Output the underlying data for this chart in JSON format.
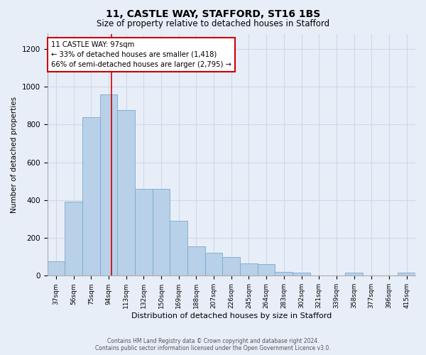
{
  "title1": "11, CASTLE WAY, STAFFORD, ST16 1BS",
  "title2": "Size of property relative to detached houses in Stafford",
  "xlabel": "Distribution of detached houses by size in Stafford",
  "ylabel": "Number of detached properties",
  "categories": [
    "37sqm",
    "56sqm",
    "75sqm",
    "94sqm",
    "113sqm",
    "132sqm",
    "150sqm",
    "169sqm",
    "188sqm",
    "207sqm",
    "226sqm",
    "245sqm",
    "264sqm",
    "283sqm",
    "302sqm",
    "321sqm",
    "339sqm",
    "358sqm",
    "377sqm",
    "396sqm",
    "415sqm"
  ],
  "values": [
    75,
    390,
    840,
    960,
    875,
    460,
    460,
    290,
    155,
    120,
    100,
    65,
    60,
    20,
    18,
    0,
    0,
    18,
    0,
    0,
    18
  ],
  "bar_color": "#b8d0e8",
  "bar_edge_color": "#7aaace",
  "vline_color": "#cc0000",
  "vline_x": 3.16,
  "annotation_text": "11 CASTLE WAY: 97sqm\n← 33% of detached houses are smaller (1,418)\n66% of semi-detached houses are larger (2,795) →",
  "annotation_box_color": "#ffffff",
  "annotation_box_edge": "#cc0000",
  "ylim": [
    0,
    1280
  ],
  "yticks": [
    0,
    200,
    400,
    600,
    800,
    1000,
    1200
  ],
  "grid_color": "#d0d8e8",
  "footer1": "Contains HM Land Registry data © Crown copyright and database right 2024.",
  "footer2": "Contains public sector information licensed under the Open Government Licence v3.0.",
  "bg_color": "#e8eef8",
  "plot_bg_color": "#e8eef8"
}
